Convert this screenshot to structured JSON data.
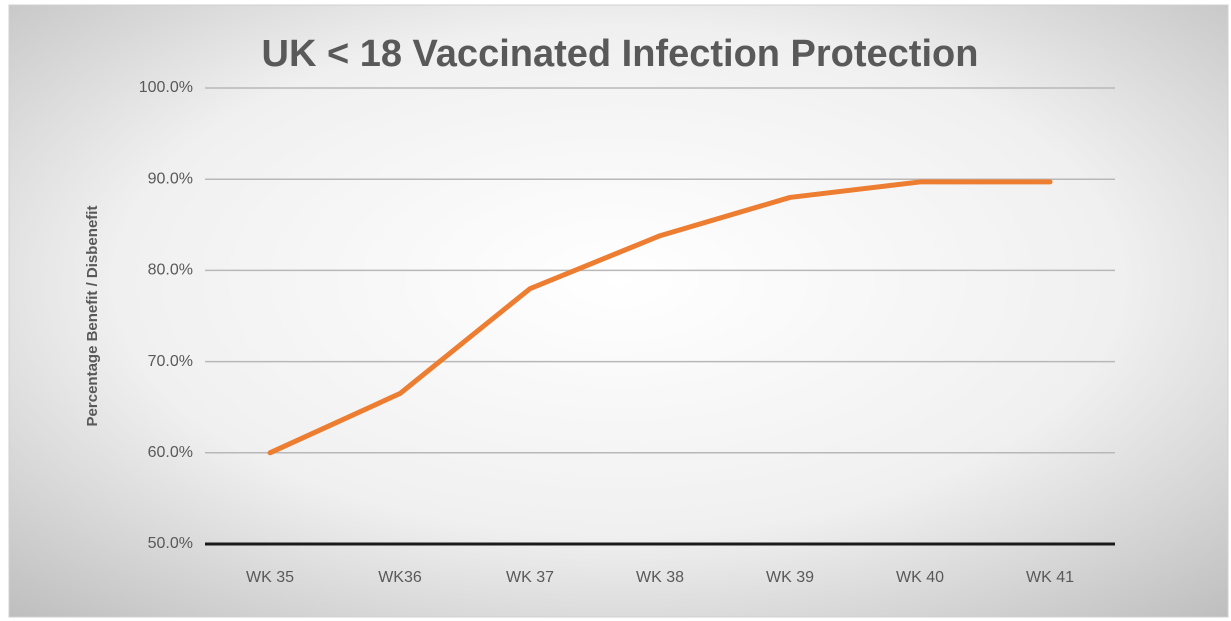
{
  "chart_data": {
    "type": "line",
    "title": "UK < 18 Vaccinated Infection Protection",
    "y_label": "Percentage Benefit / Disbenefit",
    "categories": [
      "WK 35",
      "WK36",
      "WK 37",
      "WK 38",
      "WK 39",
      "WK 40",
      "WK 41"
    ],
    "values": [
      60,
      66.5,
      78,
      83.8,
      88,
      89.7,
      89.7
    ],
    "color": "#ed7d31",
    "ylim": [
      50,
      100
    ],
    "yticks": [
      {
        "value": 50,
        "label": "50.0%"
      },
      {
        "value": 60,
        "label": "60.0%"
      },
      {
        "value": 70,
        "label": "70.0%"
      },
      {
        "value": 80,
        "label": "80.0%"
      },
      {
        "value": 90,
        "label": "90.0%"
      },
      {
        "value": 100,
        "label": "100.0%"
      }
    ],
    "grid": true
  }
}
